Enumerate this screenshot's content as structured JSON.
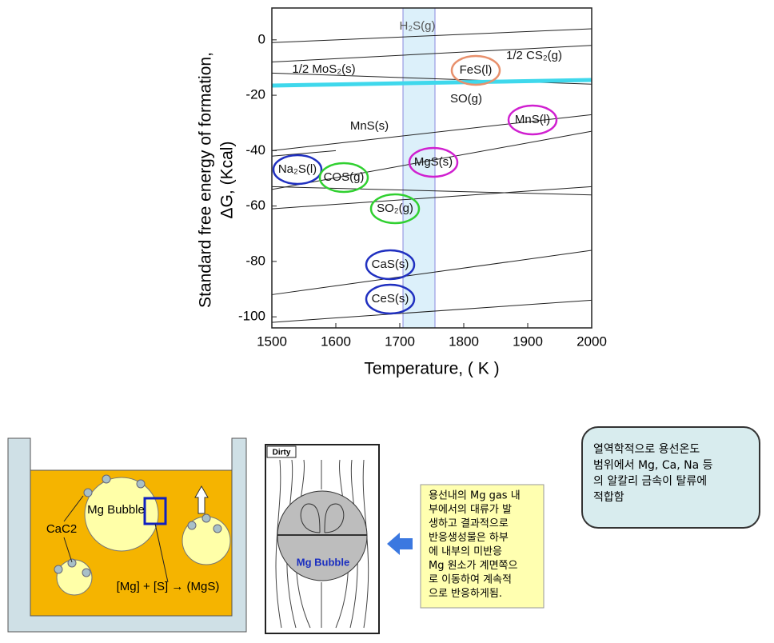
{
  "chart_data": {
    "type": "line",
    "xlabel": "Temperature, ( K )",
    "ylabel": [
      "Standard free energy of formation,",
      "ΔG, (Kcal)"
    ],
    "x": [
      1500,
      1600,
      2000
    ],
    "xlim": [
      1500,
      2000
    ],
    "ylim": [
      -104,
      11.5
    ],
    "xticks": [
      1500,
      1600,
      1700,
      1800,
      1900,
      2000
    ],
    "yticks": [
      0,
      -20,
      -40,
      -60,
      -80,
      -100
    ],
    "band_x": [
      1705,
      1755
    ],
    "band_color": "#dcf0fa",
    "series": [
      {
        "color": "#222222",
        "width": 1,
        "values": [
          -1,
          0,
          4
        ]
      },
      {
        "color": "#222222",
        "width": 1,
        "values": [
          -8,
          -6.8,
          -2
        ]
      },
      {
        "color": "#222222",
        "width": 1,
        "values": [
          -12,
          -12.8,
          -16
        ]
      },
      {
        "color": "#3fd8ec",
        "width": 5,
        "values": [
          -16.5,
          -16.1,
          -14.5
        ]
      },
      {
        "color": "#222222",
        "width": 1,
        "values": [
          -40,
          -37.4,
          -27
        ]
      },
      {
        "color": "#222222",
        "width": 1,
        "values": [
          -42,
          -40,
          null
        ]
      },
      {
        "color": "#222222",
        "width": 1,
        "values": [
          -54,
          -49.8,
          -33
        ]
      },
      {
        "color": "#222222",
        "width": 1,
        "values": [
          -53,
          -53.6,
          -56
        ]
      },
      {
        "color": "#222222",
        "width": 1,
        "values": [
          -61,
          -59.4,
          -53
        ]
      },
      {
        "color": "#222222",
        "width": 1,
        "values": [
          -92,
          -88.8,
          -76
        ]
      },
      {
        "color": "#222222",
        "width": 1,
        "values": [
          -102,
          -100.4,
          -94
        ]
      }
    ],
    "annotations": [
      {
        "text": "H₂S(g)"
      },
      {
        "text": "1/2 MoS₂(s)"
      },
      {
        "text": "FeS(l)",
        "color": "#e8906c"
      },
      {
        "text": "1/2 CS₂(g)"
      },
      {
        "text": "SO(g)"
      },
      {
        "text": "MnS(s)"
      },
      {
        "text": "MnS(l)",
        "color": "#d020d0"
      },
      {
        "text": "Na₂S(l)",
        "color": "#2030c0"
      },
      {
        "text": "COS(g)",
        "color": "#30d030"
      },
      {
        "text": "MgS(s)",
        "color": "#d020d0"
      },
      {
        "text": "SO₂(g)",
        "color": "#30d030"
      },
      {
        "text": "CaS(s)",
        "color": "#2030c0"
      },
      {
        "text": "CeS(s)",
        "color": "#2030c0"
      }
    ]
  },
  "vessel": {
    "bubble": "Mg Bubble",
    "reagent": "CaC2",
    "reaction": "[Mg] + [S] → (MgS)"
  },
  "flow": {
    "tag": "Dirty",
    "bubble": "Mg Bubble"
  },
  "note": {
    "lines": [
      "용선내의 Mg gas 내",
      "부에서의 대류가 발",
      "생하고 결과적으로",
      "반응생성물은 하부",
      "에 내부의 미반응",
      "Mg 원소가 계면쪽으",
      "로 이동하여 계속적",
      "으로 반응하게됨."
    ]
  },
  "summary": {
    "lines": [
      "열역학적으로 용선온도",
      "범위에서 Mg, Ca, Na 등",
      "의 알칼리 금속이 탈류에",
      "적합함"
    ]
  }
}
